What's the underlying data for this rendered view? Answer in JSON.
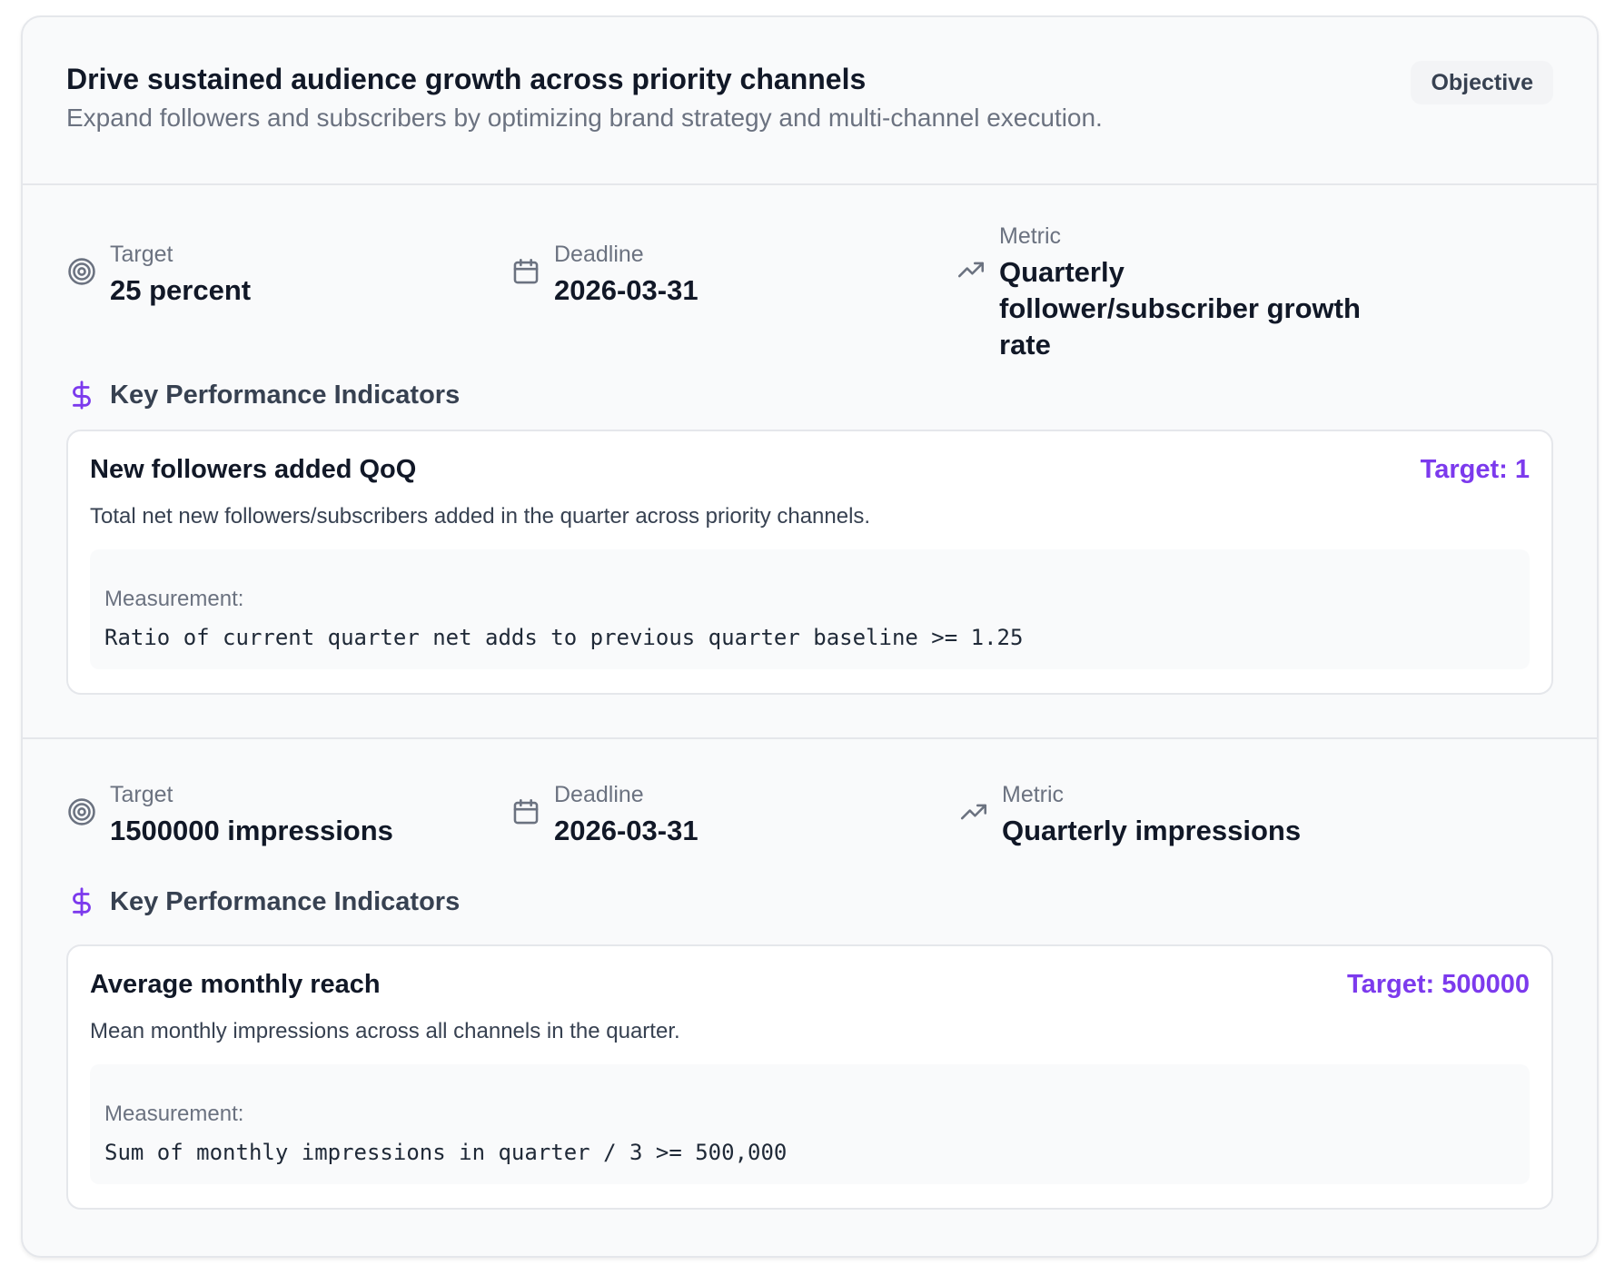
{
  "objective": {
    "title": "Drive sustained audience growth across priority channels",
    "description": "Expand followers and subscribers by optimizing brand strategy and multi-channel execution.",
    "badge": "Objective"
  },
  "key_results": [
    {
      "target_label": "Target",
      "target_value": "25 percent",
      "deadline_label": "Deadline",
      "deadline_value": "2026-03-31",
      "metric_label": "Metric",
      "metric_value": "Quarterly follower/subscriber growth rate",
      "kpi_heading": "Key Performance Indicators",
      "kpi": {
        "title": "New followers added QoQ",
        "target": "Target: 1",
        "description": "Total net new followers/subscribers added in the quarter across priority channels.",
        "measurement_label": "Measurement:",
        "measurement": "Ratio of current quarter net adds to previous quarter baseline >= 1.25"
      }
    },
    {
      "target_label": "Target",
      "target_value": "1500000 impressions",
      "deadline_label": "Deadline",
      "deadline_value": "2026-03-31",
      "metric_label": "Metric",
      "metric_value": "Quarterly impressions",
      "kpi_heading": "Key Performance Indicators",
      "kpi": {
        "title": "Average monthly reach",
        "target": "Target: 500000",
        "description": "Mean monthly impressions across all channels in the quarter.",
        "measurement_label": "Measurement:",
        "measurement": "Sum of monthly impressions in quarter / 3 >= 500,000"
      }
    }
  ],
  "icons": {
    "target": "target-icon",
    "deadline": "calendar-icon",
    "metric": "trending-up-icon",
    "kpi": "dollar-icon"
  },
  "colors": {
    "accent": "#7c3aed",
    "muted": "#6b7280",
    "text": "#111827",
    "border": "#e5e7eb",
    "surface": "#f9fafb"
  }
}
